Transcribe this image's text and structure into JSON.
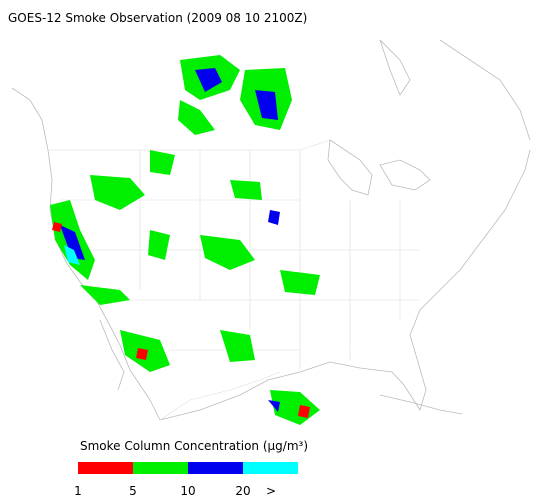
{
  "header": {
    "title": "GOES-12 Smoke Observation (2009 08 10  2100Z)"
  },
  "legend": {
    "title": "Smoke Column Concentration (µg/m³)",
    "colors": [
      "#ff0000",
      "#00ee00",
      "#0000ee",
      "#00ffff"
    ],
    "ticks": [
      "1",
      "5",
      "10",
      "20",
      ">"
    ]
  }
}
